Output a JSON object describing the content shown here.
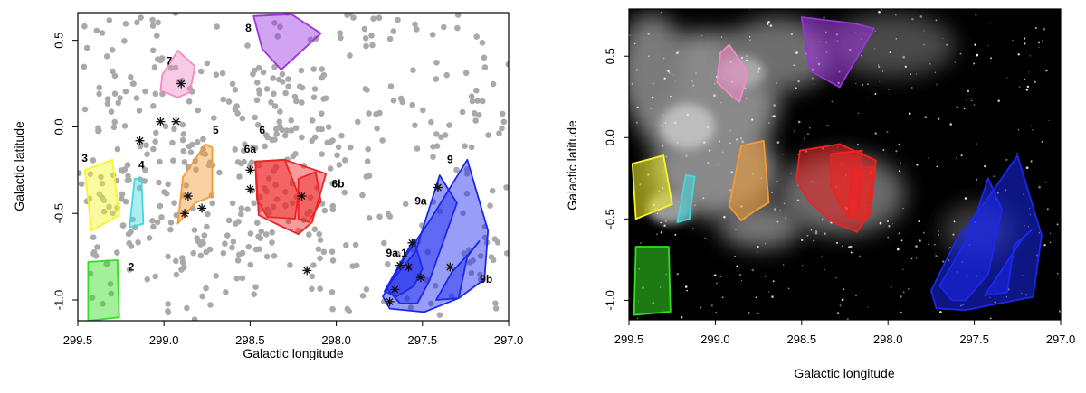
{
  "chart_data": [
    {
      "type": "scatter",
      "title": "",
      "xlabel": "Galactic longitude",
      "ylabel": "Galactic latitude",
      "xlim": [
        299.5,
        297.0
      ],
      "ylim": [
        -1.12,
        0.66
      ],
      "xticks": [
        "299.5",
        "299.0",
        "298.5",
        "298.0",
        "297.5",
        "297.0"
      ],
      "xtick_values": [
        299.5,
        299.0,
        298.5,
        298.0,
        297.5,
        297.0
      ],
      "yticks": [
        "-1.0",
        "-0.5",
        "0.0",
        "0.5"
      ],
      "ytick_values": [
        -1.0,
        -0.5,
        0.0,
        0.5
      ],
      "grid": false,
      "point_color": "#a9a9a9",
      "asterisks": [
        [
          299.02,
          0.03
        ],
        [
          298.93,
          0.03
        ],
        [
          299.14,
          -0.08
        ],
        [
          298.9,
          0.25
        ],
        [
          298.86,
          -0.4
        ],
        [
          298.88,
          -0.5
        ],
        [
          298.78,
          -0.47
        ],
        [
          298.5,
          -0.25
        ],
        [
          298.5,
          -0.36
        ],
        [
          298.2,
          -0.4
        ],
        [
          298.17,
          -0.83
        ],
        [
          297.41,
          -0.35
        ],
        [
          297.56,
          -0.67
        ],
        [
          297.63,
          -0.8
        ],
        [
          297.58,
          -0.81
        ],
        [
          297.51,
          -0.87
        ],
        [
          297.66,
          -0.94
        ],
        [
          297.69,
          -1.01
        ],
        [
          297.34,
          -0.81
        ]
      ],
      "regions": [
        {
          "label": "2",
          "color": "#33dd22",
          "label_pos": [
            299.19,
            -0.83
          ],
          "polygon": [
            [
              299.44,
              -0.78
            ],
            [
              299.27,
              -0.77
            ],
            [
              299.26,
              -1.1
            ],
            [
              299.44,
              -1.12
            ]
          ]
        },
        {
          "label": "3",
          "color": "#f5f52a",
          "label_pos": [
            299.46,
            -0.2
          ],
          "polygon": [
            [
              299.46,
              -0.25
            ],
            [
              299.3,
              -0.19
            ],
            [
              299.26,
              -0.51
            ],
            [
              299.42,
              -0.6
            ]
          ]
        },
        {
          "label": "4",
          "color": "#44d8dd",
          "label_pos": [
            299.13,
            -0.24
          ],
          "polygon": [
            [
              299.17,
              -0.3
            ],
            [
              299.13,
              -0.3
            ],
            [
              299.12,
              -0.56
            ],
            [
              299.2,
              -0.58
            ]
          ]
        },
        {
          "label": "5",
          "color": "#f39a33",
          "label_pos": [
            298.7,
            -0.04
          ],
          "polygon": [
            [
              298.89,
              -0.29
            ],
            [
              298.76,
              -0.1
            ],
            [
              298.72,
              -0.12
            ],
            [
              298.72,
              -0.4
            ],
            [
              298.82,
              -0.44
            ],
            [
              298.92,
              -0.56
            ]
          ]
        },
        {
          "label": "6",
          "color": "#ee2222",
          "label_pos": [
            298.43,
            -0.04
          ],
          "polygon": [
            [
              298.47,
              -0.2
            ],
            [
              298.3,
              -0.19
            ],
            [
              298.06,
              -0.27
            ],
            [
              298.14,
              -0.55
            ],
            [
              298.22,
              -0.62
            ],
            [
              298.33,
              -0.57
            ],
            [
              298.45,
              -0.51
            ]
          ]
        },
        {
          "label": "6a",
          "color": "#ee2222",
          "label_pos": [
            298.5,
            -0.15
          ],
          "polygon": [
            [
              298.47,
              -0.2
            ],
            [
              298.3,
              -0.19
            ],
            [
              298.22,
              -0.39
            ],
            [
              298.24,
              -0.53
            ],
            [
              298.4,
              -0.52
            ],
            [
              298.46,
              -0.42
            ]
          ]
        },
        {
          "label": "6b",
          "color": "#ee2222",
          "label_pos": [
            297.99,
            -0.35
          ],
          "polygon": [
            [
              298.22,
              -0.3
            ],
            [
              298.12,
              -0.26
            ],
            [
              298.09,
              -0.43
            ],
            [
              298.16,
              -0.55
            ],
            [
              298.22,
              -0.53
            ]
          ]
        },
        {
          "label": "7",
          "color": "#f08bc6",
          "label_pos": [
            298.97,
            0.36
          ],
          "polygon": [
            [
              298.92,
              0.44
            ],
            [
              298.82,
              0.35
            ],
            [
              298.85,
              0.2
            ],
            [
              298.92,
              0.17
            ],
            [
              299.02,
              0.21
            ],
            [
              299.01,
              0.3
            ]
          ]
        },
        {
          "label": "8",
          "color": "#9a33dd",
          "label_pos": [
            298.51,
            0.55
          ],
          "polygon": [
            [
              298.48,
              0.64
            ],
            [
              298.26,
              0.65
            ],
            [
              298.09,
              0.54
            ],
            [
              298.32,
              0.33
            ],
            [
              298.43,
              0.45
            ]
          ]
        },
        {
          "label": "9",
          "color": "#1a28ee",
          "label_pos": [
            297.34,
            -0.21
          ],
          "polygon": [
            [
              297.24,
              -0.19
            ],
            [
              297.12,
              -0.6
            ],
            [
              297.14,
              -0.88
            ],
            [
              297.29,
              -0.99
            ],
            [
              297.49,
              -1.07
            ],
            [
              297.69,
              -1.05
            ],
            [
              297.73,
              -0.98
            ],
            [
              297.6,
              -0.75
            ],
            [
              297.45,
              -0.53
            ]
          ]
        },
        {
          "label": "9a",
          "color": "#1a28ee",
          "label_pos": [
            297.51,
            -0.45
          ],
          "polygon": [
            [
              297.4,
              -0.28
            ],
            [
              297.3,
              -0.44
            ],
            [
              297.46,
              -0.89
            ],
            [
              297.53,
              -1.02
            ],
            [
              297.63,
              -1.02
            ],
            [
              297.71,
              -0.93
            ],
            [
              297.54,
              -0.72
            ]
          ]
        },
        {
          "label": "9a.1",
          "color": "#1a28ee",
          "label_pos": [
            297.65,
            -0.75
          ],
          "polygon": [
            [
              297.55,
              -0.65
            ],
            [
              297.5,
              -0.82
            ],
            [
              297.55,
              -0.92
            ],
            [
              297.65,
              -0.98
            ],
            [
              297.72,
              -0.95
            ]
          ]
        },
        {
          "label": "9b",
          "color": "#1a28ee",
          "label_pos": [
            297.13,
            -0.9
          ],
          "polygon": [
            [
              297.17,
              -0.66
            ],
            [
              297.24,
              -0.75
            ],
            [
              297.29,
              -0.99
            ],
            [
              297.42,
              -1.0
            ],
            [
              297.33,
              -0.84
            ],
            [
              297.22,
              -0.72
            ]
          ]
        }
      ]
    },
    {
      "type": "scatter",
      "title": "",
      "xlabel": "Galactic longitude",
      "ylabel": "Galactic latitude",
      "xlim": [
        299.5,
        297.0
      ],
      "ylim": [
        -1.12,
        0.79
      ],
      "xticks": [
        "299.5",
        "299.0",
        "298.5",
        "298.0",
        "297.5",
        "297.0"
      ],
      "xtick_values": [
        299.5,
        299.0,
        298.5,
        298.0,
        297.5,
        297.0
      ],
      "yticks": [
        "-1.0",
        "-0.5",
        "0.0",
        "0.5"
      ],
      "ytick_values": [
        -1.0,
        -0.5,
        0.0,
        0.5
      ],
      "grid": false,
      "background": "#000000",
      "regions": [
        {
          "color": "#33dd22",
          "polygon": [
            [
              299.46,
              -0.67
            ],
            [
              299.27,
              -0.67
            ],
            [
              299.26,
              -1.07
            ],
            [
              299.47,
              -1.09
            ]
          ]
        },
        {
          "color": "#f5f52a",
          "polygon": [
            [
              299.48,
              -0.16
            ],
            [
              299.3,
              -0.11
            ],
            [
              299.25,
              -0.41
            ],
            [
              299.46,
              -0.5
            ]
          ]
        },
        {
          "color": "#44d8dd",
          "polygon": [
            [
              299.17,
              -0.23
            ],
            [
              299.12,
              -0.24
            ],
            [
              299.15,
              -0.5
            ],
            [
              299.22,
              -0.52
            ]
          ]
        },
        {
          "color": "#f39a33",
          "polygon": [
            [
              298.85,
              -0.05
            ],
            [
              298.72,
              -0.02
            ],
            [
              298.69,
              -0.4
            ],
            [
              298.77,
              -0.45
            ],
            [
              298.85,
              -0.51
            ],
            [
              298.92,
              -0.42
            ]
          ]
        },
        {
          "color": "#ee2222",
          "polygon": [
            [
              298.51,
              -0.08
            ],
            [
              298.28,
              -0.04
            ],
            [
              298.07,
              -0.14
            ],
            [
              298.1,
              -0.46
            ],
            [
              298.18,
              -0.58
            ],
            [
              298.32,
              -0.52
            ],
            [
              298.46,
              -0.39
            ],
            [
              298.53,
              -0.26
            ]
          ]
        },
        {
          "color": "#ee2222",
          "polygon": [
            [
              298.33,
              -0.1
            ],
            [
              298.15,
              -0.08
            ],
            [
              298.17,
              -0.43
            ],
            [
              298.24,
              -0.48
            ],
            [
              298.33,
              -0.3
            ]
          ]
        },
        {
          "color": "#ee2222",
          "polygon": [
            [
              298.21,
              -0.19
            ],
            [
              298.08,
              -0.18
            ],
            [
              298.12,
              -0.5
            ],
            [
              298.23,
              -0.49
            ]
          ]
        },
        {
          "color": "#f08bc6",
          "polygon": [
            [
              298.92,
              0.57
            ],
            [
              298.81,
              0.4
            ],
            [
              298.86,
              0.22
            ],
            [
              298.9,
              0.25
            ],
            [
              298.99,
              0.34
            ],
            [
              298.97,
              0.52
            ]
          ]
        },
        {
          "color": "#9a33dd",
          "polygon": [
            [
              298.5,
              0.74
            ],
            [
              298.19,
              0.7
            ],
            [
              298.08,
              0.67
            ],
            [
              298.28,
              0.31
            ],
            [
              298.45,
              0.41
            ]
          ]
        },
        {
          "color": "#1a28ee",
          "polygon": [
            [
              297.25,
              -0.11
            ],
            [
              297.11,
              -0.6
            ],
            [
              297.16,
              -0.98
            ],
            [
              297.36,
              -1.02
            ],
            [
              297.55,
              -1.06
            ],
            [
              297.72,
              -1.05
            ],
            [
              297.75,
              -0.94
            ],
            [
              297.6,
              -0.62
            ],
            [
              297.42,
              -0.37
            ]
          ]
        },
        {
          "color": "#1a28ee",
          "polygon": [
            [
              297.42,
              -0.25
            ],
            [
              297.34,
              -0.44
            ],
            [
              297.42,
              -0.84
            ],
            [
              297.55,
              -1.0
            ],
            [
              297.63,
              -1.0
            ],
            [
              297.7,
              -0.91
            ],
            [
              297.53,
              -0.6
            ]
          ]
        },
        {
          "color": "#1a28ee",
          "polygon": [
            [
              297.17,
              -0.57
            ],
            [
              297.27,
              -0.66
            ],
            [
              297.31,
              -0.95
            ],
            [
              297.44,
              -0.97
            ],
            [
              297.32,
              -0.78
            ],
            [
              297.22,
              -0.62
            ]
          ]
        }
      ]
    }
  ]
}
